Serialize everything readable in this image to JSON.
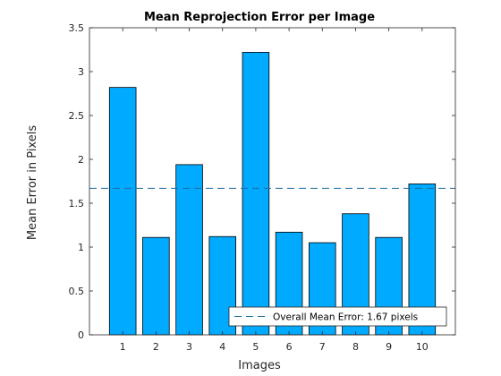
{
  "chart_data": {
    "type": "bar",
    "title": "Mean Reprojection Error per Image",
    "xlabel": "Images",
    "ylabel": "Mean Error in Pixels",
    "categories": [
      "1",
      "2",
      "3",
      "4",
      "5",
      "6",
      "7",
      "8",
      "9",
      "10"
    ],
    "values": [
      2.82,
      1.11,
      1.94,
      1.12,
      3.22,
      1.17,
      1.05,
      1.38,
      1.11,
      1.72
    ],
    "ylim": [
      0,
      3.5
    ],
    "xlim": [
      0,
      11
    ],
    "yticks": [
      "0",
      "0.5",
      "1",
      "1.5",
      "2",
      "2.5",
      "3",
      "3.5"
    ],
    "ytick_values": [
      0,
      0.5,
      1,
      1.5,
      2,
      2.5,
      3,
      3.5
    ],
    "mean_line": {
      "value": 1.67,
      "label": "Overall Mean Error: 1.67 pixels"
    },
    "legend_position": "bottom-right",
    "grid": false,
    "colors": {
      "bar": "#00aaff",
      "bar_edge": "#000000",
      "mean_line": "#1f6f9f",
      "axis": "#262626"
    }
  }
}
